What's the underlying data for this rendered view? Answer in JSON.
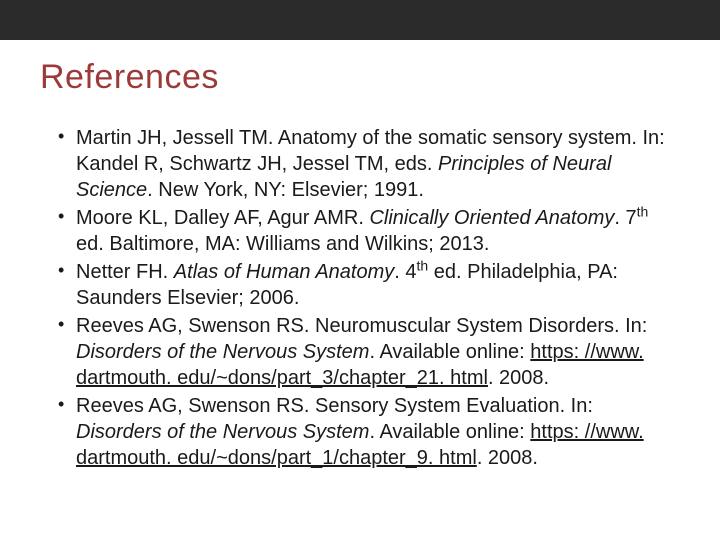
{
  "colors": {
    "title_color": "#9c3a3a",
    "text_color": "#1a1a1a",
    "topbar_color": "#2a2a2a",
    "background": "#ffffff"
  },
  "typography": {
    "title_fontsize": 34,
    "body_fontsize": 20,
    "font_family": "Arial"
  },
  "title": "References",
  "references": [
    {
      "text_before": "Martin JH, Jessell TM. Anatomy of the somatic sensory system. In: Kandel R, Schwartz JH, Jessel TM, eds. ",
      "italic_a": "Principles of Neural Science",
      "text_after": ". New York, NY: Elsevier; 1991."
    },
    {
      "text_before": "Moore KL, Dalley AF, Agur AMR. ",
      "italic_a": "Clinically Oriented Anatomy",
      "text_mid": ". 7",
      "sup": "th",
      "text_after": " ed. Baltimore, MA: Williams and Wilkins; 2013."
    },
    {
      "text_before": "Netter FH. ",
      "italic_a": "Atlas of Human Anatomy",
      "text_mid": ". 4",
      "sup": "th",
      "text_after": " ed. Philadelphia, PA: Saunders Elsevier; 2006."
    },
    {
      "text_before": "Reeves AG, Swenson RS. Neuromuscular System Disorders. In: ",
      "italic_a": "Disorders of the Nervous System",
      "text_mid": ". Available online: ",
      "link": "https: //www. dartmouth. edu/~dons/part_3/chapter_21. html",
      "text_after": ". 2008."
    },
    {
      "text_before": "Reeves AG, Swenson RS. Sensory System Evaluation. In: ",
      "italic_a": "Disorders of the Nervous System",
      "text_mid": ". Available online: ",
      "link": "https: //www. dartmouth. edu/~dons/part_1/chapter_9. html",
      "text_after": ". 2008."
    }
  ]
}
